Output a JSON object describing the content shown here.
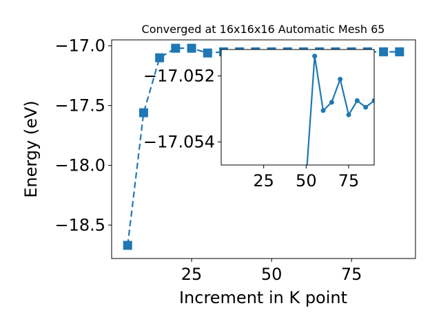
{
  "chart_data": [
    {
      "type": "line",
      "title": "Converged at 16x16x16 Automatic Mesh 65",
      "xlabel": "Increment in K point",
      "ylabel": "Energy (eV)",
      "xlim": [
        0,
        95
      ],
      "ylim": [
        -18.78,
        -16.95
      ],
      "xticks": [
        25,
        50,
        75
      ],
      "yticks": [
        -17.0,
        -17.5,
        -18.0,
        -18.5
      ],
      "xtick_labels": [
        "25",
        "50",
        "75"
      ],
      "ytick_labels": [
        "−17.0",
        "−17.5",
        "−18.0",
        "−18.5"
      ],
      "grid": false,
      "marker": "square",
      "line_style": "solid",
      "color": "#1f77b4",
      "series": [
        {
          "x": [
            5,
            10,
            15,
            20,
            25,
            30,
            35,
            40,
            45,
            50,
            55,
            60,
            65,
            70,
            75,
            80,
            85,
            90
          ],
          "values": [
            -18.67,
            -17.56,
            -17.1,
            -17.02,
            -17.02,
            -17.06,
            -17.05,
            -17.05,
            -17.05,
            -17.05,
            -17.05,
            -17.05,
            -17.05,
            -17.05,
            -17.05,
            -17.05,
            -17.05,
            -17.05
          ]
        }
      ]
    },
    {
      "type": "line",
      "title": "",
      "xlabel": "",
      "ylabel": "",
      "xlim": [
        0,
        90
      ],
      "ylim": [
        -17.0547,
        -17.0512
      ],
      "xticks": [
        25,
        50,
        75
      ],
      "yticks": [
        -17.054,
        -17.052
      ],
      "xtick_labels": [
        "25",
        "50",
        "75"
      ],
      "ytick_labels": [
        "−17.054",
        "−17.052"
      ],
      "grid": false,
      "marker": "circle",
      "line_style": "solid",
      "color": "#1f77b4",
      "series": [
        {
          "x": [
            50,
            55,
            60,
            65,
            70,
            75,
            80,
            85,
            90
          ],
          "values": [
            -17.0551,
            -17.0514,
            -17.05305,
            -17.0528,
            -17.0521,
            -17.05318,
            -17.05275,
            -17.05295,
            -17.05275
          ]
        }
      ]
    }
  ]
}
